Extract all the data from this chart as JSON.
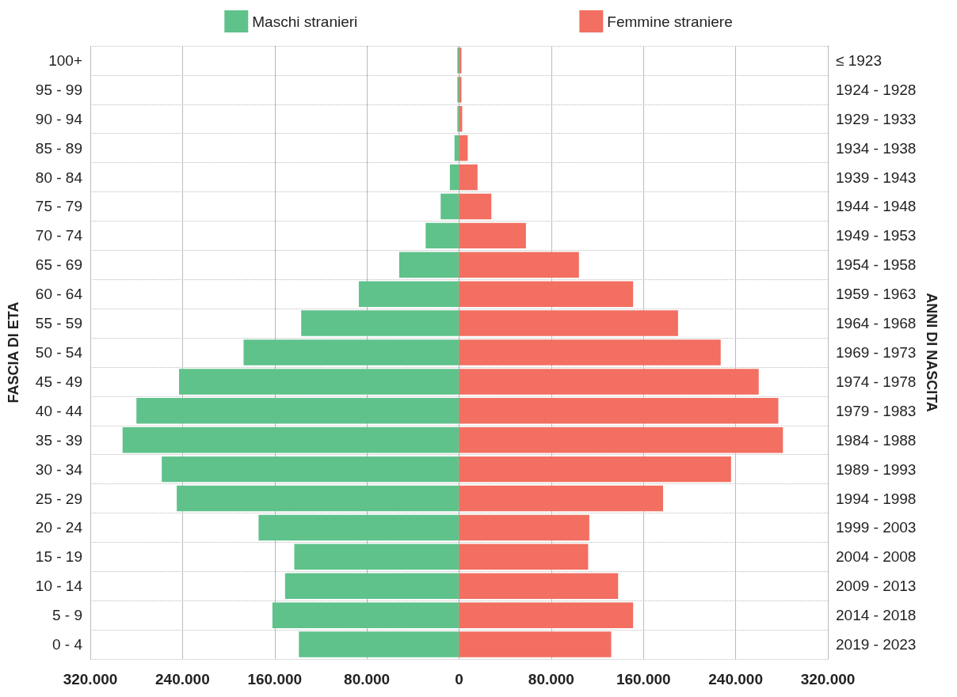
{
  "chart_data": {
    "type": "bar",
    "orientation": "horizontal",
    "ylabel": "FASCIA DI ETA",
    "y2label": "ANNI DI NASCITA",
    "categories": [
      "100+",
      "95 - 99",
      "90 - 94",
      "85 - 89",
      "80 - 84",
      "75 - 79",
      "70 - 74",
      "65 - 69",
      "60 - 64",
      "55 - 59",
      "50 - 54",
      "45 - 49",
      "40 - 44",
      "35 - 39",
      "30 - 34",
      "25 - 29",
      "20 - 24",
      "15 - 19",
      "10 - 14",
      "5 - 9",
      "0 - 4"
    ],
    "y2_categories": [
      "≤ 1923",
      "1924 - 1928",
      "1929 - 1933",
      "1934 - 1938",
      "1939 - 1943",
      "1944 - 1948",
      "1949 - 1953",
      "1954 - 1958",
      "1959 - 1963",
      "1964 - 1968",
      "1969 - 1973",
      "1974 - 1978",
      "1979 - 1983",
      "1984 - 1988",
      "1989 - 1993",
      "1994 - 1998",
      "1999 - 2003",
      "2004 - 2008",
      "2009 - 2013",
      "2014 - 2018",
      "2019 - 2023"
    ],
    "series": [
      {
        "name": "Maschi stranieri",
        "color": "#5fc28b",
        "values": [
          -1500,
          -1500,
          -1500,
          -4000,
          -8000,
          -16000,
          -29000,
          -52000,
          -87000,
          -137000,
          -187000,
          -243000,
          -280000,
          -292000,
          -258000,
          -245000,
          -174000,
          -143000,
          -151000,
          -162000,
          -139000
        ]
      },
      {
        "name": "Femmine straniere",
        "color": "#f26f61",
        "values": [
          2000,
          2000,
          2700,
          7500,
          16000,
          28000,
          58000,
          104000,
          151000,
          190000,
          227000,
          260000,
          277000,
          281000,
          236000,
          177000,
          113000,
          112000,
          138000,
          151000,
          132000
        ]
      }
    ],
    "xlim": [
      -320000,
      320000
    ],
    "xticks": [
      {
        "value": -320000,
        "label": "320.000"
      },
      {
        "value": -240000,
        "label": "240.000"
      },
      {
        "value": -160000,
        "label": "160.000"
      },
      {
        "value": -80000,
        "label": "80.000"
      },
      0,
      {
        "value": 80000,
        "label": "80.000"
      },
      {
        "value": 160000,
        "label": "160.000"
      },
      {
        "value": 240000,
        "label": "240.000"
      },
      {
        "value": 320000,
        "label": "320.000"
      }
    ],
    "stacked": true,
    "grid": true,
    "legend": "top"
  }
}
